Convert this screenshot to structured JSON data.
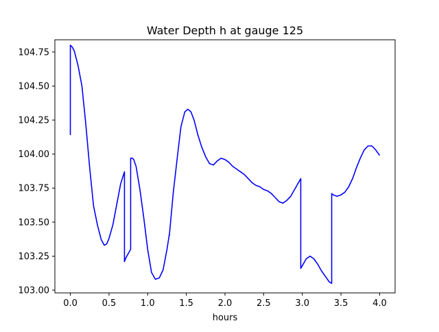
{
  "chart_data": {
    "type": "line",
    "title": "Water Depth h at gauge 125",
    "xlabel": "hours",
    "ylabel": "",
    "xlim": [
      -0.2,
      4.2
    ],
    "ylim": [
      102.98,
      104.84
    ],
    "xticks": [
      0.0,
      0.5,
      1.0,
      1.5,
      2.0,
      2.5,
      3.0,
      3.5,
      4.0
    ],
    "xtick_labels": [
      "0.0",
      "0.5",
      "1.0",
      "1.5",
      "2.0",
      "2.5",
      "3.0",
      "3.5",
      "4.0"
    ],
    "yticks": [
      103.0,
      103.25,
      103.5,
      103.75,
      104.0,
      104.25,
      104.5,
      104.75
    ],
    "ytick_labels": [
      "103.00",
      "103.25",
      "103.50",
      "103.75",
      "104.00",
      "104.25",
      "104.50",
      "104.75"
    ],
    "grid": false,
    "series": [
      {
        "color": "#0000ff",
        "x": [
          0.0,
          0.0,
          0.0,
          0.0,
          0.02,
          0.05,
          0.1,
          0.15,
          0.2,
          0.25,
          0.3,
          0.35,
          0.4,
          0.44,
          0.47,
          0.5,
          0.55,
          0.6,
          0.65,
          0.7,
          0.7,
          0.72,
          0.75,
          0.78,
          0.78,
          0.8,
          0.82,
          0.85,
          0.9,
          0.95,
          1.0,
          1.05,
          1.1,
          1.15,
          1.2,
          1.25,
          1.28,
          1.28,
          1.33,
          1.38,
          1.43,
          1.48,
          1.52,
          1.56,
          1.6,
          1.65,
          1.7,
          1.75,
          1.8,
          1.85,
          1.9,
          1.95,
          2.0,
          2.05,
          2.1,
          2.15,
          2.2,
          2.25,
          2.3,
          2.35,
          2.4,
          2.45,
          2.5,
          2.55,
          2.6,
          2.65,
          2.7,
          2.75,
          2.8,
          2.85,
          2.9,
          2.95,
          2.98,
          2.98,
          3.0,
          3.05,
          3.1,
          3.15,
          3.2,
          3.25,
          3.3,
          3.35,
          3.38,
          3.38,
          3.4,
          3.45,
          3.5,
          3.55,
          3.6,
          3.65,
          3.7,
          3.75,
          3.8,
          3.85,
          3.9,
          3.95,
          4.0
        ],
        "y": [
          104.14,
          104.52,
          104.5,
          104.8,
          104.79,
          104.76,
          104.65,
          104.5,
          104.22,
          103.9,
          103.62,
          103.48,
          103.37,
          103.33,
          103.34,
          103.38,
          103.48,
          103.63,
          103.78,
          103.87,
          103.21,
          103.24,
          103.27,
          103.3,
          103.97,
          103.97,
          103.96,
          103.91,
          103.74,
          103.53,
          103.3,
          103.13,
          103.08,
          103.09,
          103.15,
          103.3,
          103.41,
          103.4,
          103.71,
          103.96,
          104.2,
          104.31,
          104.33,
          104.31,
          104.25,
          104.14,
          104.05,
          103.98,
          103.93,
          103.92,
          103.95,
          103.97,
          103.96,
          103.94,
          103.91,
          103.89,
          103.87,
          103.85,
          103.82,
          103.79,
          103.77,
          103.76,
          103.74,
          103.73,
          103.71,
          103.68,
          103.65,
          103.64,
          103.66,
          103.69,
          103.74,
          103.79,
          103.82,
          103.16,
          103.18,
          103.23,
          103.25,
          103.23,
          103.19,
          103.14,
          103.1,
          103.06,
          103.05,
          103.71,
          103.7,
          103.69,
          103.7,
          103.72,
          103.76,
          103.82,
          103.9,
          103.97,
          104.03,
          104.06,
          104.06,
          104.03,
          103.99
        ]
      }
    ]
  }
}
